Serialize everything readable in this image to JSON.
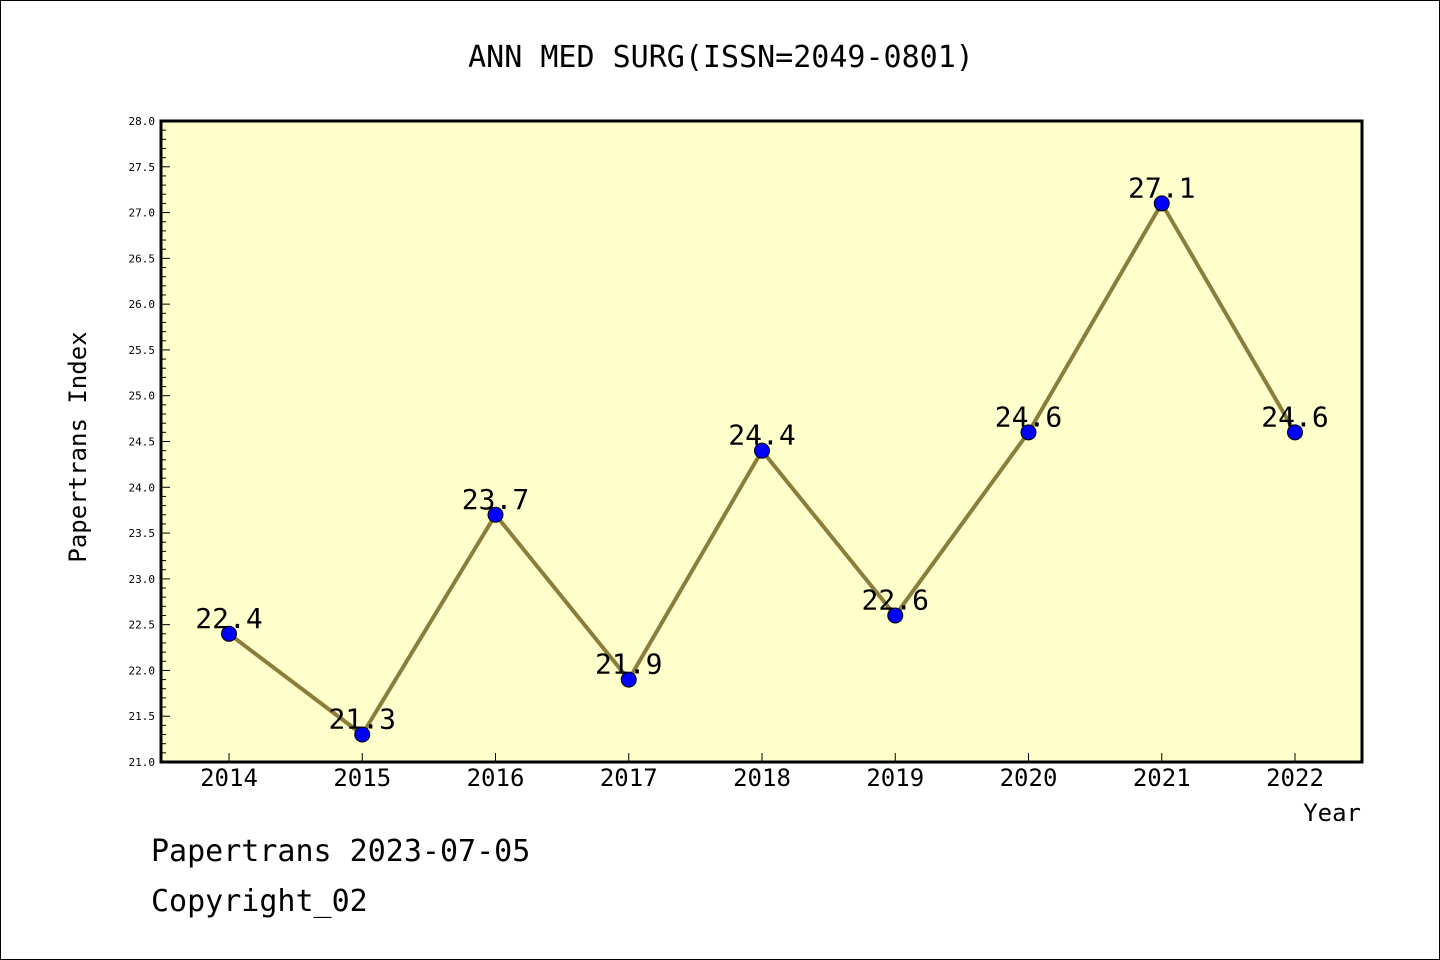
{
  "chart_data": {
    "type": "line",
    "title": "ANN MED SURG(ISSN=2049-0801)",
    "xlabel": "Year",
    "ylabel": "Papertrans Index",
    "categories": [
      "2014",
      "2015",
      "2016",
      "2017",
      "2018",
      "2019",
      "2020",
      "2021",
      "2022"
    ],
    "series": [
      {
        "values": [
          22.4,
          21.3,
          23.7,
          21.9,
          24.4,
          22.6,
          24.6,
          27.1,
          24.6
        ],
        "data_labels": [
          "22.4",
          "21.3",
          "23.7",
          "21.9",
          "24.4",
          "22.6",
          "24.6",
          "27.1",
          "24.6"
        ]
      }
    ],
    "ylim": [
      21.0,
      28.0
    ],
    "yticks": [
      "21.0",
      "21.5",
      "22.0",
      "22.5",
      "23.0",
      "23.5",
      "24.0",
      "24.5",
      "25.0",
      "25.5",
      "26.0",
      "26.5",
      "27.0",
      "27.5",
      "28.0"
    ],
    "grid": false,
    "legend": "none",
    "colors": {
      "plot_background": "#ffffcc",
      "line": "#8b7d3a",
      "marker": "#0000ff"
    }
  },
  "footer": {
    "line1": "Papertrans 2023-07-05",
    "line2": "Copyright_02"
  }
}
